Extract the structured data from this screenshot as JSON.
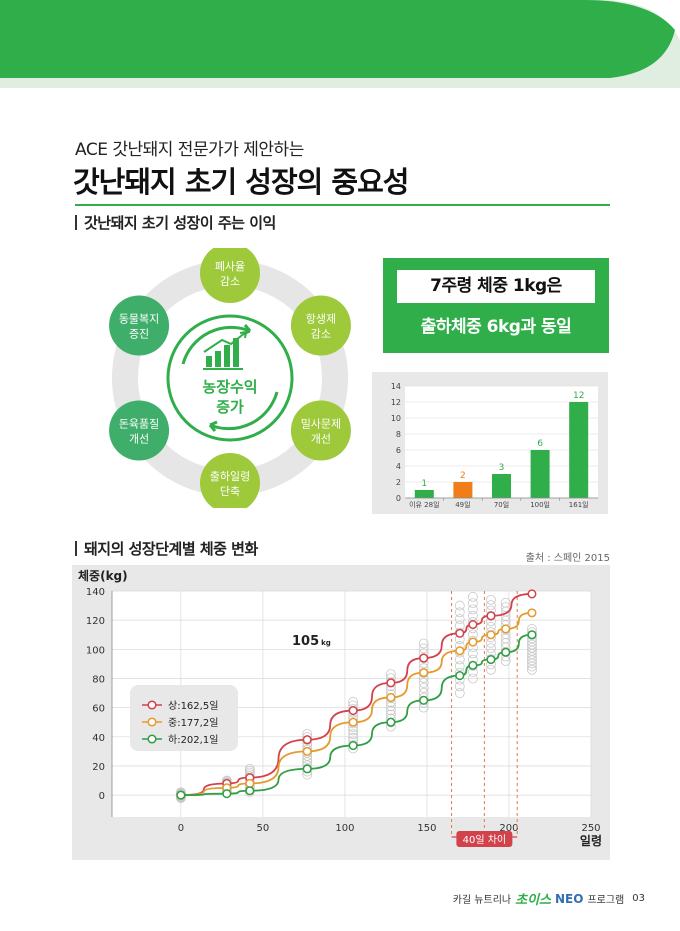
{
  "header": {
    "subtitle": "ACE 갓난돼지 전문가가 제안하는",
    "title": "갓난돼지 초기 성장의 중요성"
  },
  "section1": {
    "heading": "갓난돼지 초기 성장이 주는 이익"
  },
  "cycle": {
    "center_line1": "농장수익",
    "center_line2": "증가",
    "center_icon": "bar-chart-growth-icon",
    "items": [
      {
        "line1": "폐사율",
        "line2": "감소",
        "color": "#9dc93b"
      },
      {
        "line1": "항생제",
        "line2": "감소",
        "color": "#9dc93b"
      },
      {
        "line1": "밀사문제",
        "line2": "개선",
        "color": "#9dc93b"
      },
      {
        "line1": "출하일령",
        "line2": "단축",
        "color": "#9dc93b"
      },
      {
        "line1": "돈육품질",
        "line2": "개선",
        "color": "#3fae6a"
      },
      {
        "line1": "동물복지",
        "line2": "증진",
        "color": "#3fae6a"
      }
    ]
  },
  "infobox": {
    "line1": "7주령 체중 1kg은",
    "line2": "출하체중 6kg과 동일"
  },
  "chart_data": [
    {
      "type": "bar",
      "categories": [
        "이유 28일",
        "49일",
        "70일",
        "100일",
        "161일"
      ],
      "values": [
        1,
        2,
        3,
        6,
        12
      ],
      "value_labels": [
        "1",
        "2",
        "3",
        "6",
        "12"
      ],
      "highlight_index": 1,
      "bar_color": "#2fae4a",
      "highlight_color": "#ef7d1a",
      "ylim": [
        0,
        14
      ],
      "yticks": [
        "0",
        "2",
        "4",
        "6",
        "8",
        "10",
        "12",
        "14"
      ],
      "grid": true
    },
    {
      "type": "line",
      "ylabel": "체중(kg)",
      "xlabel": "일령",
      "xlim": [
        -42,
        250
      ],
      "ylim": [
        -15,
        140
      ],
      "xticks": [
        "0",
        "50",
        "100",
        "150",
        "200",
        "250"
      ],
      "yticks": [
        "0",
        "20",
        "40",
        "60",
        "80",
        "100",
        "120",
        "140"
      ],
      "annotation": "105",
      "annotation_unit": "kg",
      "range_label": "40일 차이",
      "range_days": [
        165,
        205
      ],
      "legend_position": "left",
      "series": [
        {
          "name": "상:162,5일",
          "color": "#d2424b",
          "x": [
            0,
            28,
            42,
            77,
            105,
            128,
            148,
            170,
            178,
            189,
            214
          ],
          "y": [
            0,
            8,
            12,
            38,
            58,
            77,
            94,
            111,
            117,
            123,
            138
          ]
        },
        {
          "name": "중:177,2일",
          "color": "#e59a2b",
          "x": [
            0,
            28,
            42,
            77,
            105,
            128,
            148,
            170,
            178,
            189,
            198,
            214
          ],
          "y": [
            0,
            5,
            8,
            30,
            50,
            67,
            84,
            99,
            105,
            110,
            114,
            125
          ]
        },
        {
          "name": "하:202,1일",
          "color": "#2f9e44",
          "x": [
            0,
            28,
            42,
            77,
            105,
            128,
            148,
            170,
            178,
            189,
            198,
            214
          ],
          "y": [
            0,
            1,
            3,
            18,
            34,
            50,
            65,
            82,
            89,
            93,
            98,
            110
          ]
        }
      ]
    }
  ],
  "section2": {
    "heading": "돼지의 성장단계별 체중 변화",
    "source": "출처 : 스페인 2015"
  },
  "footer": {
    "brand1": "카길 뉴트리나",
    "brand_logo": "초이스",
    "brand_neo": "NEO",
    "brand2": "프로그램",
    "page": "03"
  }
}
